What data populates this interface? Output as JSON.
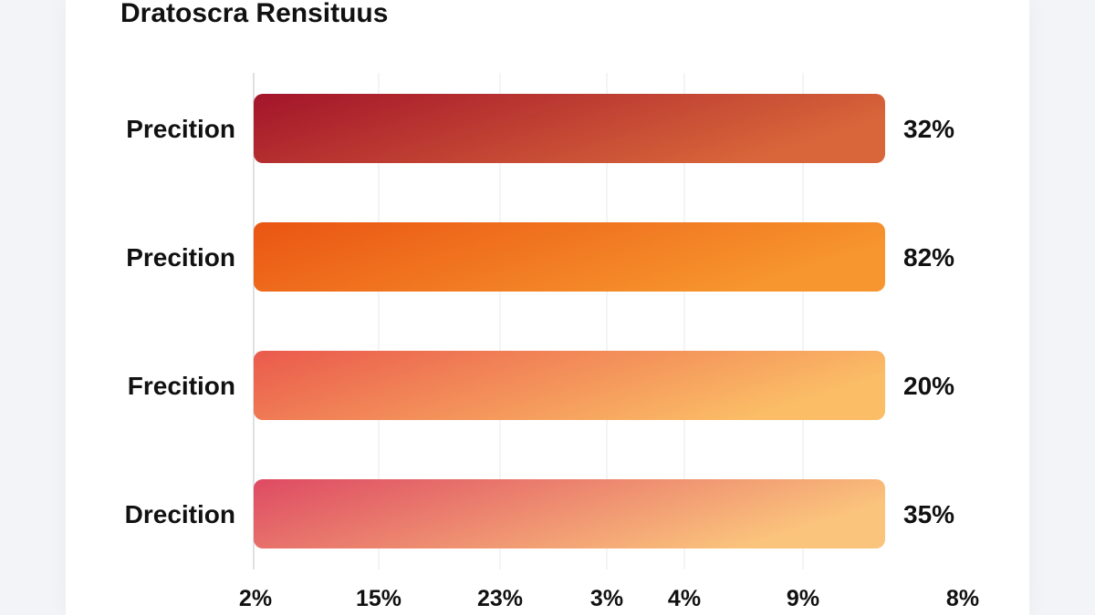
{
  "chart_data": {
    "type": "bar",
    "orientation": "horizontal",
    "title": "Dratoscra Rensituus",
    "categories": [
      "Precition",
      "Precition",
      "Frecition",
      "Drecition"
    ],
    "value_labels": [
      "32%",
      "82%",
      "20%",
      "35%"
    ],
    "x_tick_labels": [
      "2%",
      "15%",
      "23%",
      "3%",
      "4%",
      "9%",
      "8%"
    ],
    "grid": "vertical",
    "bar_gradients": [
      [
        "#a3142a",
        "#d8663a"
      ],
      [
        "#ea5513",
        "#f7962e"
      ],
      [
        "#ea5a4c",
        "#fbbd66"
      ],
      [
        "#de4a63",
        "#fbc47c"
      ]
    ]
  }
}
